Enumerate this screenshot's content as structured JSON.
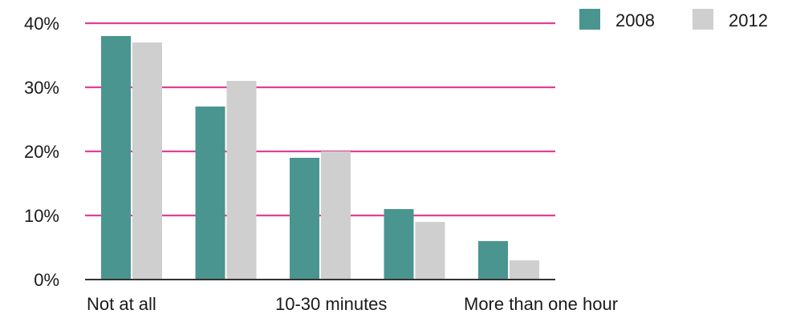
{
  "chart_data": {
    "type": "bar",
    "categories": [
      "Not at all",
      "",
      "10-30 minutes",
      "",
      "More than one hour"
    ],
    "series": [
      {
        "name": "2008",
        "values": [
          38,
          27,
          19,
          11,
          6
        ],
        "color": "#4a9590"
      },
      {
        "name": "2012",
        "values": [
          37,
          31,
          20,
          9,
          3
        ],
        "color": "#cfcfcf"
      }
    ],
    "y_ticks": [
      "0%",
      "10%",
      "20%",
      "30%",
      "40%"
    ],
    "ylim": [
      0,
      40
    ],
    "grid": true,
    "grid_color": "#e0409a",
    "axis_color": "#333333",
    "legend_position": "top-right"
  }
}
